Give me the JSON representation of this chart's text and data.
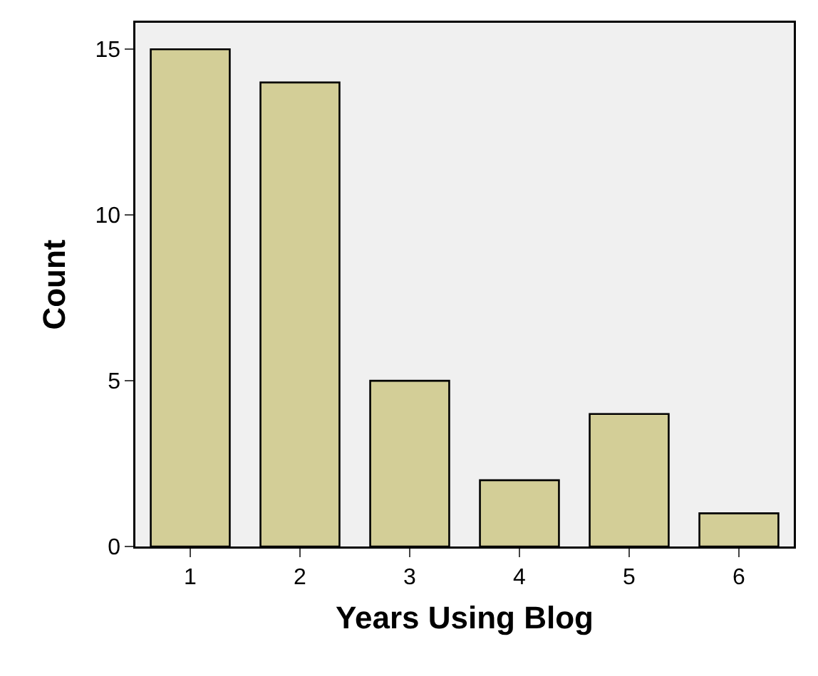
{
  "chart_data": {
    "type": "bar",
    "xlabel": "Years Using Blog",
    "ylabel": "Count",
    "categories": [
      "1",
      "2",
      "3",
      "4",
      "5",
      "6"
    ],
    "values": [
      15,
      14,
      5,
      2,
      4,
      1
    ],
    "color": "#d3ce97",
    "ylim": [
      0,
      15.8
    ],
    "yticks": [
      0,
      5,
      10,
      15
    ],
    "grid": false,
    "legend": false
  }
}
